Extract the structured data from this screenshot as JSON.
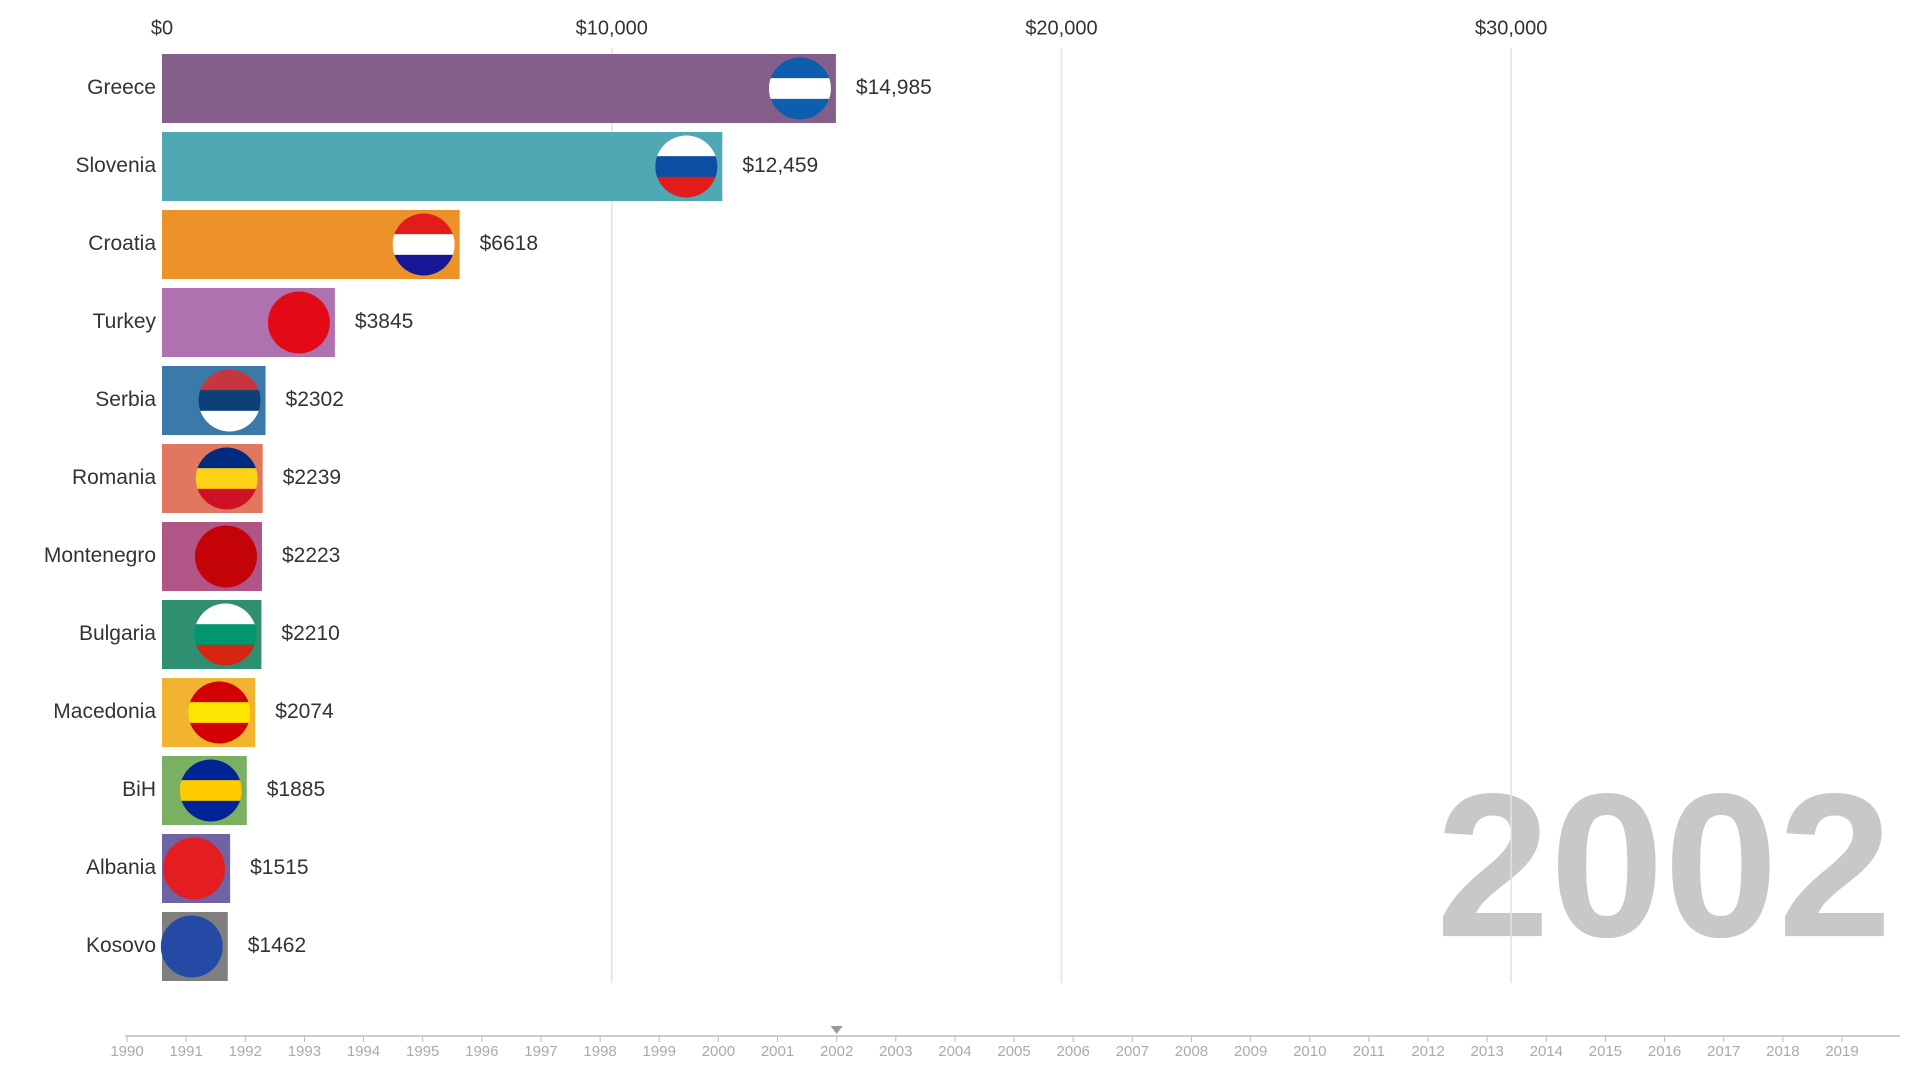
{
  "chart_data": {
    "type": "bar",
    "orientation": "horizontal",
    "categories": [
      "Greece",
      "Slovenia",
      "Croatia",
      "Turkey",
      "Serbia",
      "Romania",
      "Montenegro",
      "Bulgaria",
      "Macedonia",
      "BiH",
      "Albania",
      "Kosovo"
    ],
    "values": [
      14985,
      12459,
      6618,
      3845,
      2302,
      2239,
      2223,
      2210,
      2074,
      1885,
      1515,
      1462
    ],
    "value_labels": [
      "$14,985",
      "$12,459",
      "$6618",
      "$3845",
      "$2302",
      "$2239",
      "$2223",
      "$2210",
      "$2074",
      "$1885",
      "$1515",
      "$1462"
    ],
    "colors": [
      "#835f8a",
      "#4fa8b4",
      "#ec9228",
      "#b071b0",
      "#3b79a8",
      "#e0775e",
      "#b05585",
      "#2e8f71",
      "#f1b431",
      "#7bb062",
      "#6f63a3",
      "#7f7f7f"
    ],
    "xlim": [
      0,
      38000
    ],
    "xticks": [
      {
        "value": 0,
        "label": "$0"
      },
      {
        "value": 10000,
        "label": "$10,000"
      },
      {
        "value": 20000,
        "label": "$20,000"
      },
      {
        "value": 30000,
        "label": "$30,000"
      }
    ],
    "grid": true,
    "year": "2002"
  },
  "timeline": {
    "years": [
      1990,
      1991,
      1992,
      1993,
      1994,
      1995,
      1996,
      1997,
      1998,
      1999,
      2000,
      2001,
      2002,
      2003,
      2004,
      2005,
      2006,
      2007,
      2008,
      2009,
      2010,
      2011,
      2012,
      2013,
      2014,
      2015,
      2016,
      2017,
      2018,
      2019
    ],
    "current": 2002
  }
}
